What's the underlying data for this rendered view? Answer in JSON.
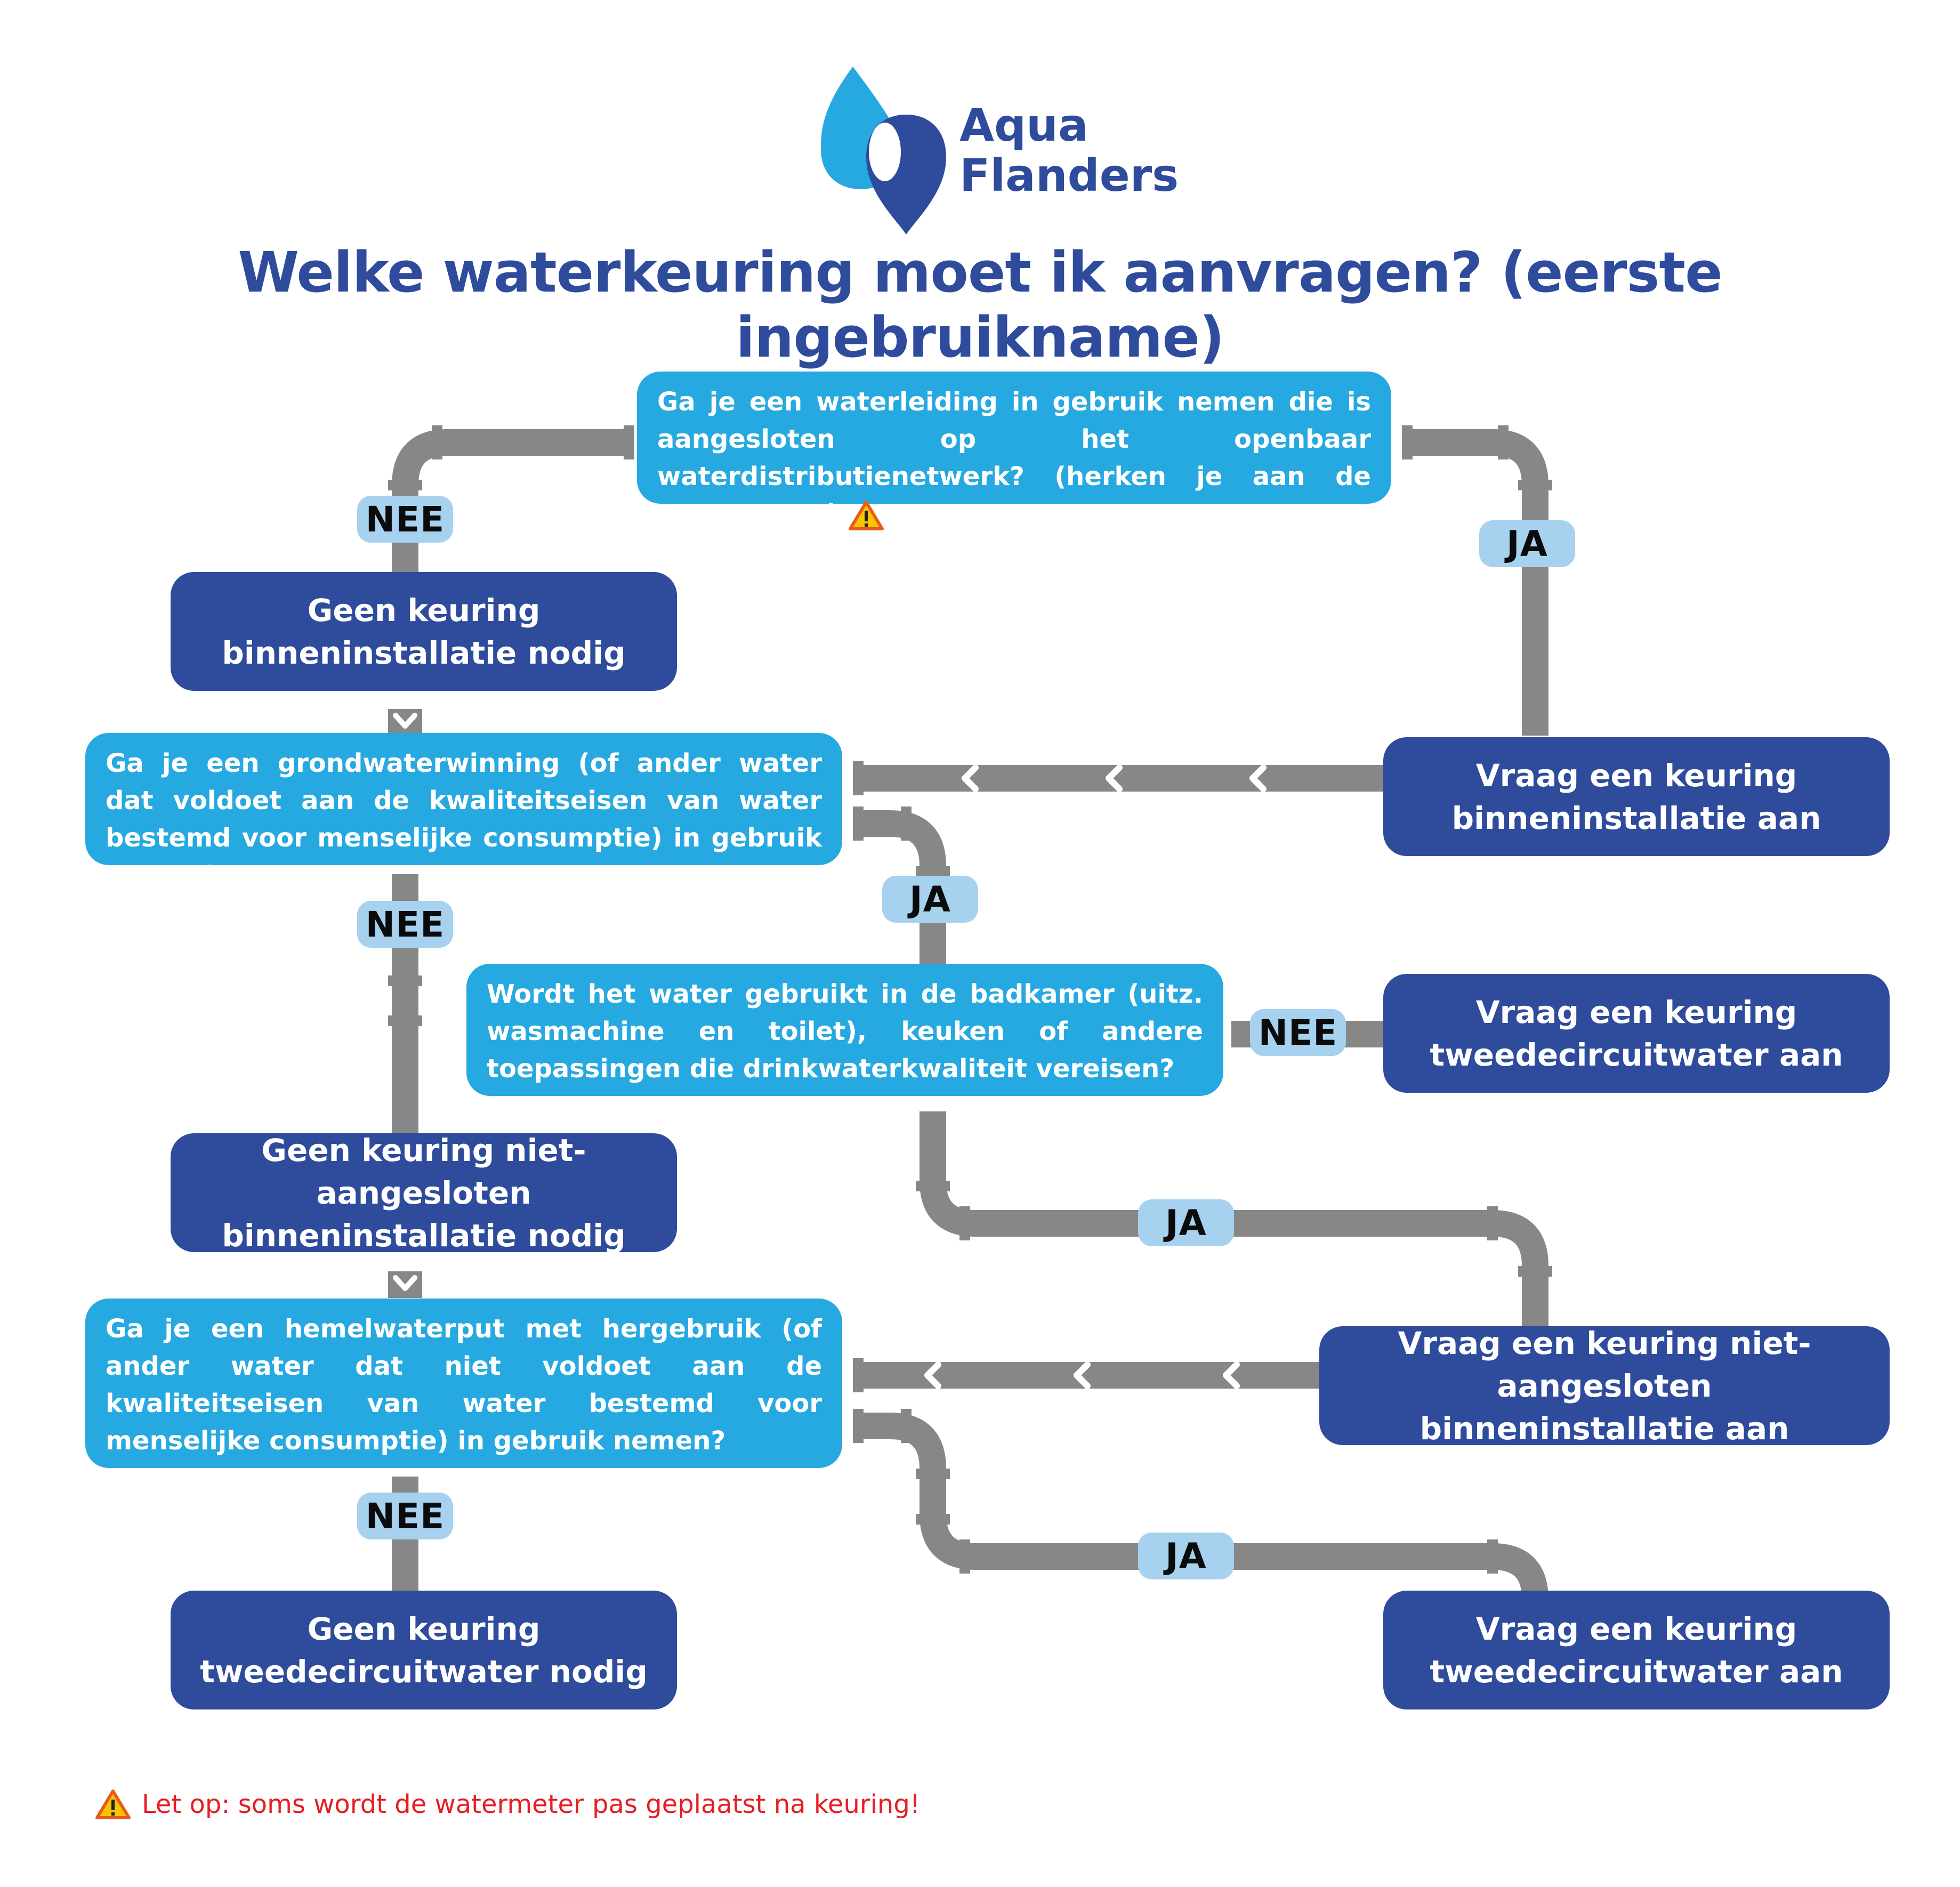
{
  "brand": {
    "line1": "Aqua",
    "line2": "Flanders"
  },
  "title": "Welke waterkeuring moet ik aanvragen? (eerste ingebruikname)",
  "colors": {
    "question": "#26a9e0",
    "answer": "#2e4b9c",
    "label": "#a6d2f0",
    "pipe": "#878787",
    "warning": "#e51e25"
  },
  "questions": {
    "q1": "Ga je een waterleiding in gebruik nemen die is aangesloten op het openbaar waterdistributienetwerk? (herken je aan de watermeter)",
    "q2": "Ga je een grondwaterwinning (of ander water dat voldoet aan de kwaliteitseisen van water bestemd voor menselijke consumptie) in gebruik nemen?",
    "q3": "Wordt het water gebruikt in de badkamer (uitz. wasmachine en toilet), keuken of andere toepassingen die drinkwaterkwaliteit vereisen?",
    "q4": "Ga je een hemelwaterput met hergebruik (of ander water dat niet voldoet aan de kwaliteitseisen van water bestemd voor menselijke consumptie) in gebruik nemen?"
  },
  "answers": {
    "a1": {
      "line1": "Geen keuring",
      "line2": "binneninstallatie nodig"
    },
    "a2": {
      "line1": "Vraag een keuring",
      "line2": "binneninstallatie aan"
    },
    "a3": {
      "line1": "Geen keuring niet-aangesloten",
      "line2": "binneninstallatie nodig"
    },
    "a4": {
      "line1": "Vraag een keuring",
      "line2": "tweedecircuitwater aan"
    },
    "a5": {
      "line1": "Vraag een keuring niet-aangesloten",
      "line2": "binneninstallatie aan"
    },
    "a6": {
      "line1": "Geen keuring",
      "line2": "tweedecircuitwater nodig"
    },
    "a7": {
      "line1": "Vraag een keuring",
      "line2": "tweedecircuitwater aan"
    }
  },
  "labels": {
    "yes": "JA",
    "no": "NEE"
  },
  "footnote": "Let op: soms wordt de watermeter pas geplaatst na keuring!",
  "icons": [
    "water-drop-logo",
    "warning-icon",
    "chevron-down-icon",
    "chevron-left-icon"
  ]
}
